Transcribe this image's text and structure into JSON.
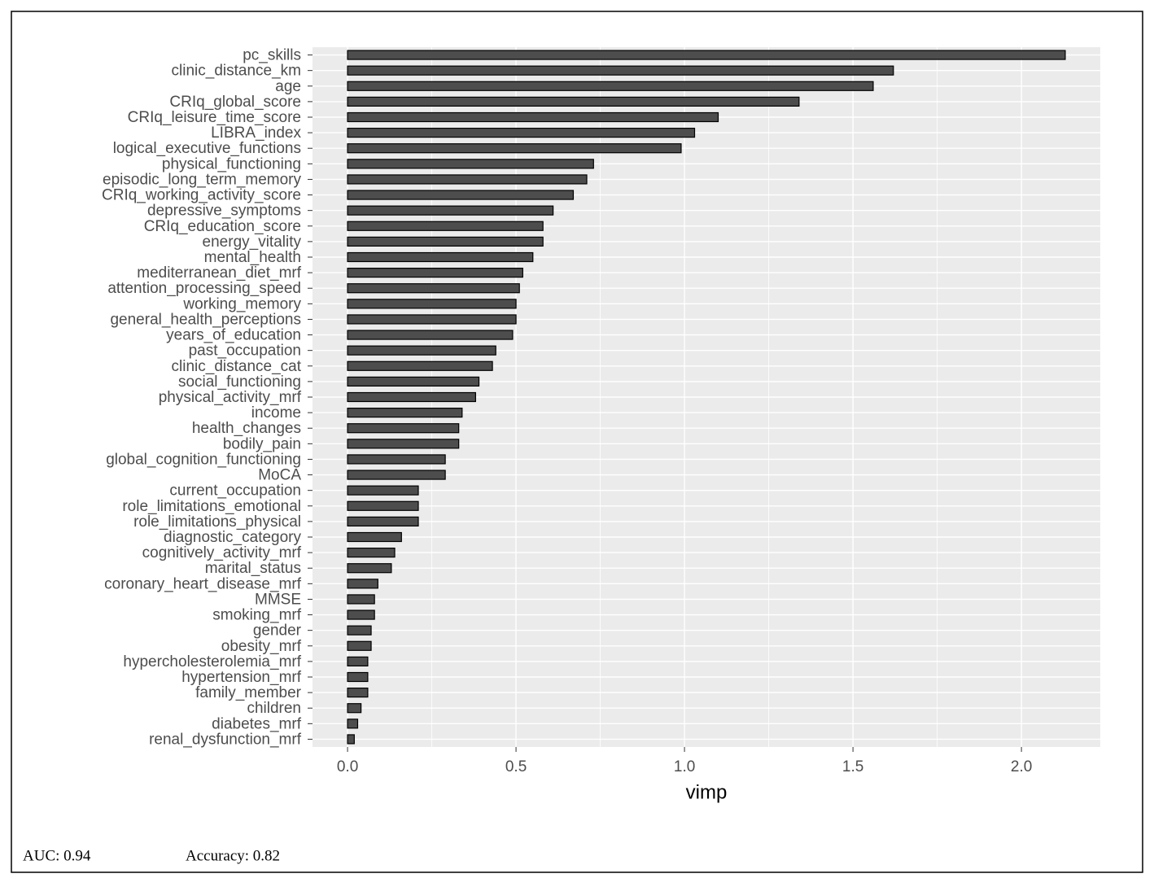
{
  "chart_data": {
    "type": "bar",
    "orientation": "horizontal",
    "x_label": "vimp",
    "categories": [
      "pc_skills",
      "clinic_distance_km",
      "age",
      "CRIq_global_score",
      "CRIq_leisure_time_score",
      "LIBRA_index",
      "logical_executive_functions",
      "physical_functioning",
      "episodic_long_term_memory",
      "CRIq_working_activity_score",
      "depressive_symptoms",
      "CRIq_education_score",
      "energy_vitality",
      "mental_health",
      "mediterranean_diet_mrf",
      "attention_processing_speed",
      "working_memory",
      "general_health_perceptions",
      "years_of_education",
      "past_occupation",
      "clinic_distance_cat",
      "social_functioning",
      "physical_activity_mrf",
      "income",
      "health_changes",
      "bodily_pain",
      "global_cognition_functioning",
      "MoCA",
      "current_occupation",
      "role_limitations_emotional",
      "role_limitations_physical",
      "diagnostic_category",
      "cognitively_activity_mrf",
      "marital_status",
      "coronary_heart_disease_mrf",
      "MMSE",
      "smoking_mrf",
      "gender",
      "obesity_mrf",
      "hypercholesterolemia_mrf",
      "hypertension_mrf",
      "family_member",
      "children",
      "diabetes_mrf",
      "renal_dysfunction_mrf"
    ],
    "values": [
      2.13,
      1.62,
      1.56,
      1.34,
      1.1,
      1.03,
      0.99,
      0.73,
      0.71,
      0.67,
      0.61,
      0.58,
      0.58,
      0.55,
      0.52,
      0.51,
      0.5,
      0.5,
      0.49,
      0.44,
      0.43,
      0.39,
      0.38,
      0.34,
      0.33,
      0.33,
      0.29,
      0.29,
      0.21,
      0.21,
      0.21,
      0.16,
      0.14,
      0.13,
      0.09,
      0.08,
      0.08,
      0.07,
      0.07,
      0.06,
      0.06,
      0.06,
      0.04,
      0.03,
      0.02
    ],
    "color": "#4d4d4d",
    "xlim": [
      -0.104,
      2.234
    ],
    "xticks": [
      {
        "value": 0,
        "label": "0.0"
      },
      {
        "value": 0.5,
        "label": "0.5"
      },
      {
        "value": 1,
        "label": "1.0"
      },
      {
        "value": 1.5,
        "label": "1.5"
      },
      {
        "value": 2,
        "label": "2.0"
      }
    ],
    "grid": true,
    "annotations": [
      "AUC: 0.94",
      "Accuracy: 0.82"
    ]
  }
}
